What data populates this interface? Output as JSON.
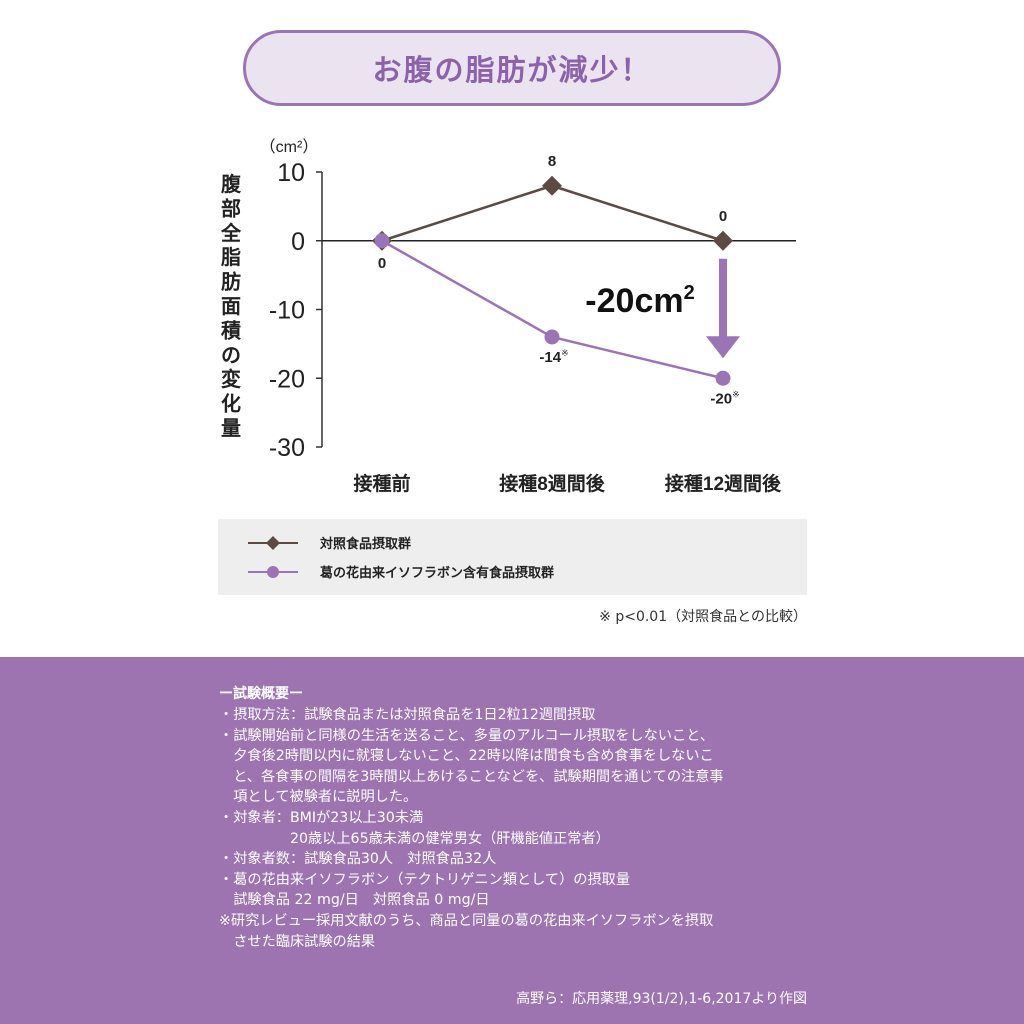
{
  "title": "お腹の脂肪が減少！",
  "colors": {
    "control": "#5c4a44",
    "treatment": "#9b74b8",
    "accent": "#9b74b8",
    "panel": "#9d74b0"
  },
  "chart_data": {
    "type": "line",
    "unit_label": "（cm²）",
    "ylabel": "腹部全脂肪面積の変化量",
    "ylim": [
      -30,
      10
    ],
    "yticks": [
      10,
      0,
      -10,
      -20,
      -30
    ],
    "categories": [
      "接種前",
      "接種8週間後",
      "接種12週間後"
    ],
    "series": [
      {
        "name": "対照食品摂取群",
        "marker": "diamond",
        "values": [
          0,
          8,
          0
        ],
        "labels": [
          "",
          "8",
          "0"
        ]
      },
      {
        "name": "葛の花由来イソフラボン含有食品摂取群",
        "marker": "circle",
        "values": [
          0,
          -14,
          -20
        ],
        "labels": [
          "0",
          "-14※",
          "-20※"
        ]
      }
    ],
    "annotation": {
      "text": "-20cm²"
    }
  },
  "footnote": "※ p<0.01（対照食品との比較）",
  "info": {
    "heading": "ー試験概要ー",
    "lines": [
      "・摂取方法：試験食品または対照食品を1日2粒12週間摂取",
      "・試験開始前と同様の生活を送ること、多量のアルコール摂取をしないこと、",
      "　夕食後2時間以内に就寝しないこと、22時以降は間食も含め食事をしないこ",
      "　と、各食事の間隔を3時間以上あけることなどを、試験期間を通じての注意事",
      "　項として被験者に説明した。",
      "・対象者：BMIが23以上30未満",
      "　　　　　20歳以上65歳未満の健常男女（肝機能値正常者）",
      "・対象者数：試験食品30人　対照食品32人",
      "・葛の花由来イソフラボン（テクトリゲニン類として）の摂取量",
      "　試験食品 22 mg/日　対照食品 0 mg/日",
      "※研究レビュー採用文献のうち、商品と同量の葛の花由来イソフラボンを摂取",
      "　させた臨床試験の結果"
    ],
    "citation": "高野ら：応用薬理,93(1/2),1-6,2017より作図"
  }
}
